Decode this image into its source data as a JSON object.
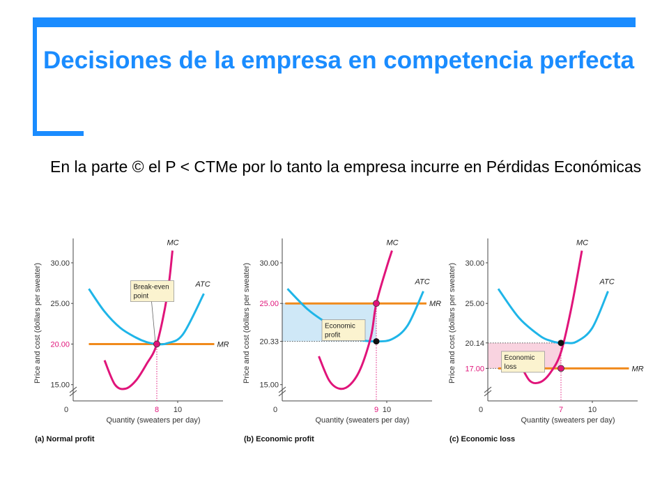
{
  "slide": {
    "title": "Decisiones de la empresa en competencia perfecta",
    "body": "En la parte © el P < CTMe por lo tanto la empresa incurre en Pérdidas Económicas"
  },
  "colors": {
    "accent": "#1a8cff",
    "mc": "#e0147a",
    "atc": "#1fb5e8",
    "mr": "#f08a1c",
    "profit_fill": "#cfe8f7",
    "loss_fill": "#f9d3e0",
    "label_box": "#fbf3cf"
  },
  "chart_data": [
    {
      "type": "line",
      "caption": "(a) Normal profit",
      "xlabel": "Quantity (sweaters per day)",
      "ylabel": "Price and cost (dollars per sweater)",
      "xlim": [
        0,
        14
      ],
      "ylim": [
        13,
        33
      ],
      "y_ticks": [
        "15.00",
        "20.00",
        "25.00",
        "30.00"
      ],
      "y_highlight": "20.00",
      "x_ticks": [
        "0",
        "10"
      ],
      "x_highlight": "8",
      "price": 20.0,
      "quantity": 8,
      "atc_at_q": 20.0,
      "series": [
        {
          "name": "MC",
          "x": [
            3.0,
            4.0,
            5.0,
            6.0,
            7.0,
            8.0,
            9.0,
            9.5
          ],
          "y": [
            18.0,
            15.0,
            14.5,
            15.5,
            17.5,
            20.0,
            26.0,
            31.5
          ]
        },
        {
          "name": "ATC",
          "x": [
            1.5,
            3.0,
            4.5,
            6.0,
            7.0,
            8.0,
            9.0,
            10.5,
            12.5
          ],
          "y": [
            26.8,
            24.0,
            22.0,
            20.8,
            20.25,
            20.0,
            20.1,
            21.2,
            26.2
          ]
        },
        {
          "name": "MR",
          "x": [
            1.5,
            13.5
          ],
          "y": [
            20.0,
            20.0
          ]
        }
      ],
      "annotations": [
        {
          "text": "Break-even point",
          "x": 5.5,
          "y": 27.8
        }
      ]
    },
    {
      "type": "line",
      "caption": "(b) Economic profit",
      "xlabel": "Quantity (sweaters per day)",
      "ylabel": "Price and cost (dollars per sweater)",
      "xlim": [
        0,
        14
      ],
      "ylim": [
        13,
        33
      ],
      "y_ticks": [
        "15.00",
        "20.33",
        "25.00",
        "30.00"
      ],
      "y_highlight": "25.00",
      "x_ticks": [
        "0",
        "10"
      ],
      "x_highlight": "9",
      "price": 25.0,
      "quantity": 9,
      "atc_at_q": 20.33,
      "series": [
        {
          "name": "MC",
          "x": [
            3.5,
            4.5,
            5.5,
            6.5,
            7.5,
            8.5,
            9.0,
            10.0,
            10.5
          ],
          "y": [
            18.5,
            15.5,
            14.5,
            15.0,
            17.0,
            21.0,
            25.0,
            29.5,
            31.5
          ]
        },
        {
          "name": "ATC",
          "x": [
            0.5,
            2.5,
            4.5,
            6.5,
            7.5,
            9.0,
            10.5,
            12.0,
            13.5
          ],
          "y": [
            26.8,
            24.2,
            22.4,
            21.0,
            20.5,
            20.33,
            20.6,
            22.3,
            26.5
          ]
        },
        {
          "name": "MR",
          "x": [
            0.3,
            13.8
          ],
          "y": [
            25.0,
            25.0
          ]
        }
      ],
      "annotations": [
        {
          "text": "Economic profit",
          "x": 3.8,
          "y": 23.0
        }
      ]
    },
    {
      "type": "line",
      "caption": "(c) Economic loss",
      "xlabel": "Quantity (sweaters per day)",
      "ylabel": "Price and cost (dollars per sweater)",
      "xlim": [
        0,
        14
      ],
      "ylim": [
        13,
        33
      ],
      "y_ticks": [
        "17.00",
        "20.14",
        "25.00",
        "30.00"
      ],
      "y_highlight": "17.00",
      "x_ticks": [
        "0",
        "10"
      ],
      "x_highlight": "7",
      "price": 17.0,
      "quantity": 7,
      "atc_at_q": 20.14,
      "series": [
        {
          "name": "MC",
          "x": [
            3.0,
            4.0,
            5.0,
            6.0,
            7.0,
            8.0,
            9.0
          ],
          "y": [
            17.8,
            15.5,
            15.3,
            16.5,
            19.0,
            24.5,
            31.5
          ]
        },
        {
          "name": "ATC",
          "x": [
            1.0,
            3.0,
            5.0,
            6.0,
            6.8,
            7.5,
            8.5,
            10.0,
            11.5
          ],
          "y": [
            26.8,
            23.2,
            21.0,
            20.4,
            20.15,
            20.14,
            20.3,
            22.0,
            26.5
          ]
        },
        {
          "name": "MR",
          "x": [
            1.0,
            13.5
          ],
          "y": [
            17.0,
            17.0
          ]
        }
      ],
      "annotations": [
        {
          "text": "Economic loss",
          "x": 1.3,
          "y": 19.1
        }
      ]
    }
  ]
}
